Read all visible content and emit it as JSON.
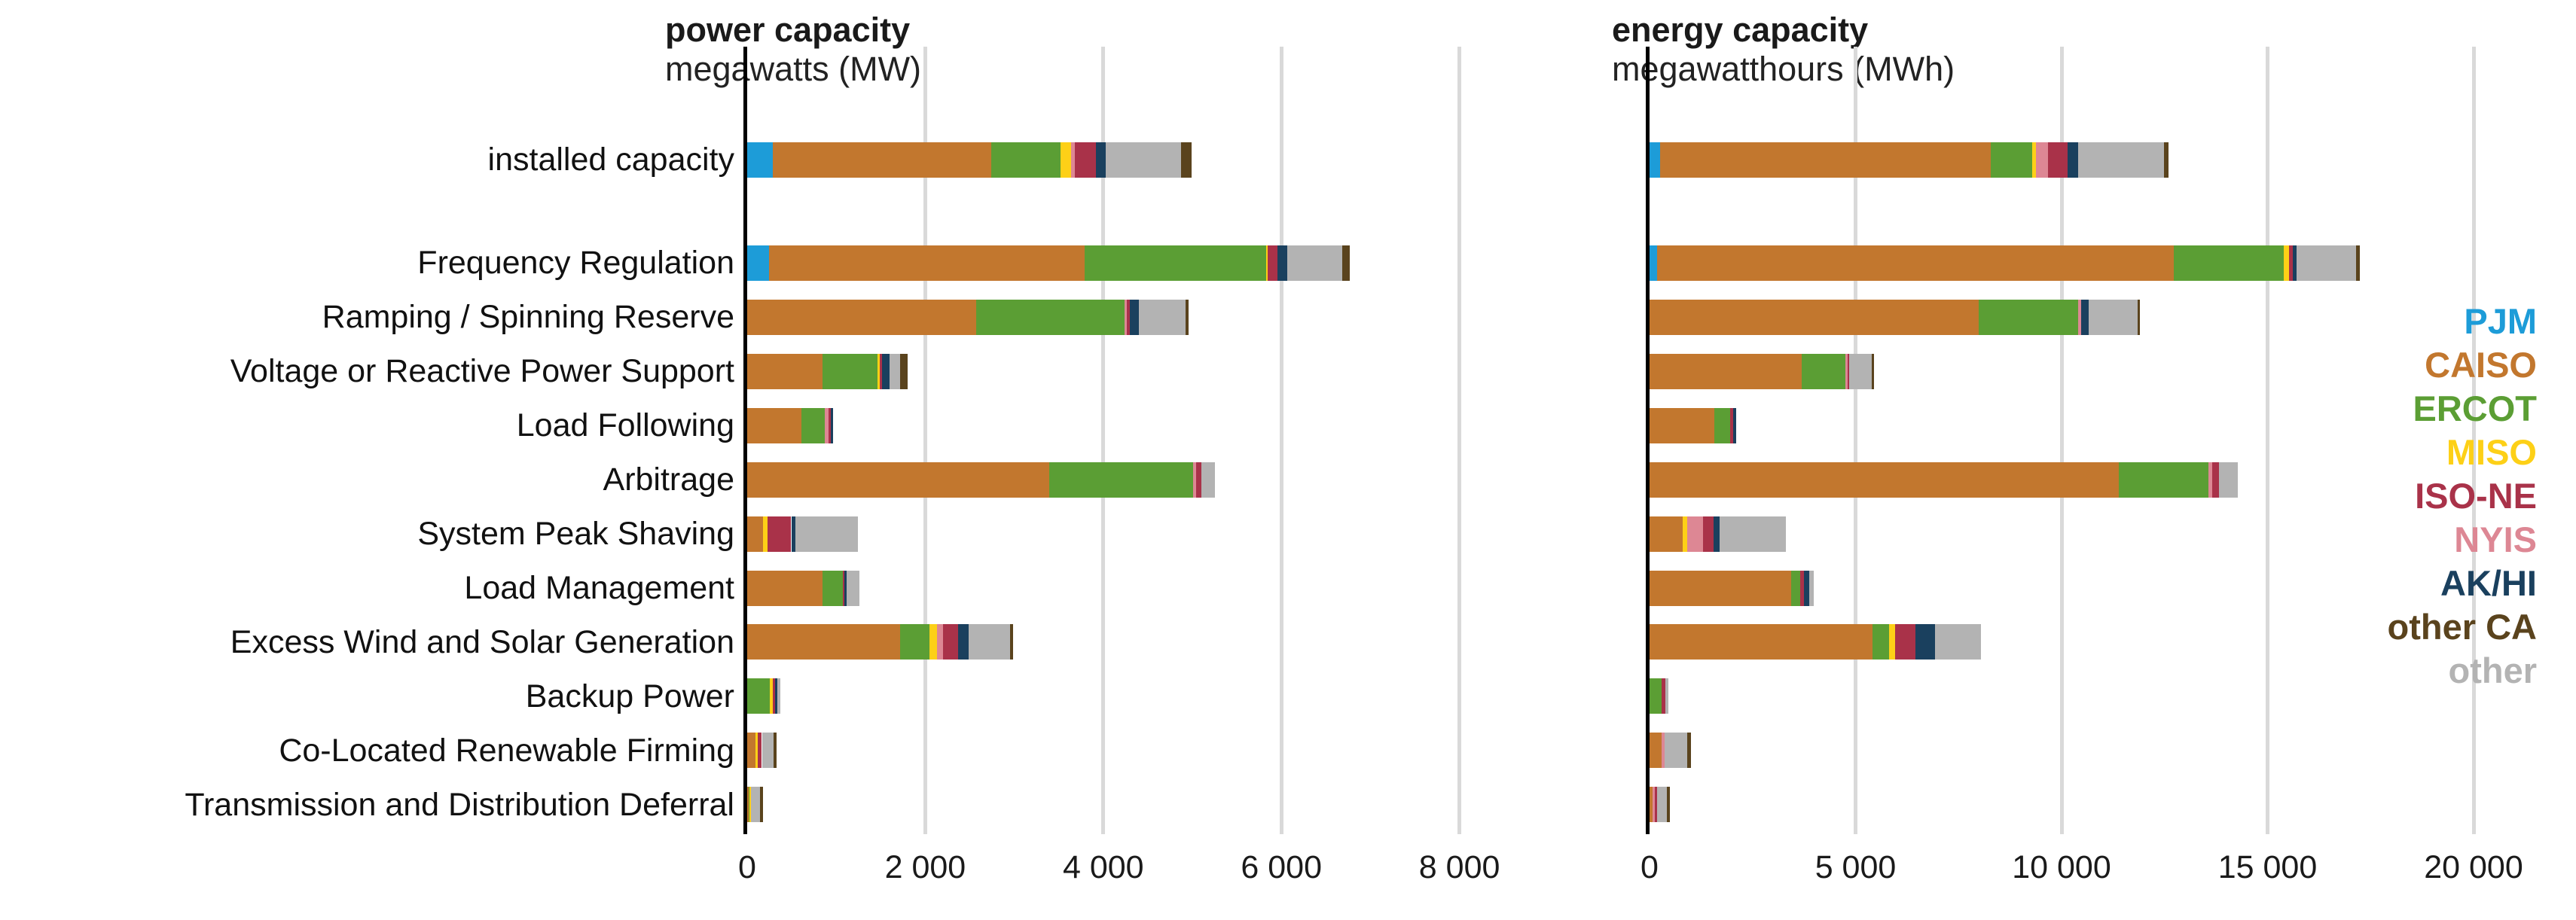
{
  "colors": {
    "PJM": "#1d9cd8",
    "CAISO": "#c2772e",
    "ERCOT": "#5b9e34",
    "MISO": "#fdd017",
    "NYIS": "#dd8794",
    "ISO-NE": "#a93249",
    "AK/HI": "#1a405e",
    "other CA": "#5a431d",
    "other": "#b3b3b3",
    "gridline": "#d9d9d9",
    "axis": "#000000"
  },
  "legend": {
    "items": [
      {
        "label": "PJM",
        "color": "#1d9cd8"
      },
      {
        "label": "CAISO",
        "color": "#c2772e"
      },
      {
        "label": "ERCOT",
        "color": "#5b9e34"
      },
      {
        "label": "MISO",
        "color": "#fdd017"
      },
      {
        "label": "ISO-NE",
        "color": "#a93249"
      },
      {
        "label": "NYIS",
        "color": "#dd8794"
      },
      {
        "label": "AK/HI",
        "color": "#1a405e"
      },
      {
        "label": "other CA",
        "color": "#5a431d"
      },
      {
        "label": "other",
        "color": "#b3b3b3"
      }
    ]
  },
  "chart_data": [
    {
      "type": "bar",
      "orientation": "horizontal",
      "stacked": true,
      "title": "power capacity",
      "subtitle": "megawatts (MW)",
      "unit": "MW",
      "xlabel": "",
      "ylabel": "",
      "xlim": [
        0,
        9000
      ],
      "grid": "vertical",
      "x_ticks": [
        {
          "value": 0,
          "label": "0"
        },
        {
          "value": 2000,
          "label": "2 000"
        },
        {
          "value": 4000,
          "label": "4 000"
        },
        {
          "value": 6000,
          "label": "6 000"
        },
        {
          "value": 8000,
          "label": "8 000"
        }
      ],
      "categories": [
        "installed capacity",
        "Frequency Regulation",
        "Ramping / Spinning Reserve",
        "Voltage or Reactive Power Support",
        "Load Following",
        "Arbitrage",
        "System Peak Shaving",
        "Load Management",
        "Excess Wind and Solar Generation",
        "Backup Power",
        "Co-Located Renewable Firming",
        "Transmission and Distribution Deferral"
      ],
      "series": [
        {
          "name": "PJM",
          "values": [
            290,
            245,
            0,
            0,
            0,
            0,
            0,
            0,
            0,
            0,
            0,
            0
          ]
        },
        {
          "name": "CAISO",
          "values": [
            2450,
            3545,
            2570,
            850,
            610,
            3390,
            180,
            845,
            1720,
            0,
            95,
            15
          ]
        },
        {
          "name": "ERCOT",
          "values": [
            780,
            2035,
            1665,
            615,
            260,
            1615,
            0,
            230,
            325,
            250,
            0,
            10
          ]
        },
        {
          "name": "MISO",
          "values": [
            120,
            25,
            0,
            25,
            0,
            0,
            50,
            0,
            85,
            35,
            20,
            20
          ]
        },
        {
          "name": "NYIS",
          "values": [
            40,
            0,
            30,
            0,
            45,
            40,
            0,
            0,
            70,
            0,
            0,
            0
          ]
        },
        {
          "name": "ISO-NE",
          "values": [
            235,
            110,
            35,
            25,
            25,
            60,
            265,
            20,
            170,
            30,
            50,
            0
          ]
        },
        {
          "name": "AK/HI",
          "values": [
            110,
            110,
            100,
            80,
            25,
            0,
            50,
            25,
            115,
            25,
            0,
            0
          ]
        },
        {
          "name": "other",
          "values": [
            845,
            610,
            525,
            120,
            0,
            150,
            700,
            140,
            465,
            30,
            135,
            100
          ]
        },
        {
          "name": "other CA",
          "values": [
            120,
            90,
            35,
            85,
            0,
            0,
            0,
            0,
            35,
            0,
            30,
            35
          ]
        }
      ]
    },
    {
      "type": "bar",
      "orientation": "horizontal",
      "stacked": true,
      "title": "energy capacity",
      "subtitle": "megawatthours (MWh)",
      "unit": "MWh",
      "xlabel": "",
      "ylabel": "",
      "xlim": [
        0,
        20400
      ],
      "grid": "vertical",
      "x_ticks": [
        {
          "value": 0,
          "label": "0"
        },
        {
          "value": 5000,
          "label": "5 000"
        },
        {
          "value": 10000,
          "label": "10 000"
        },
        {
          "value": 15000,
          "label": "15 000"
        },
        {
          "value": 20000,
          "label": "20 000"
        }
      ],
      "categories": [
        "installed capacity",
        "Frequency Regulation",
        "Ramping / Spinning Reserve",
        "Voltage or Reactive Power Support",
        "Load Following",
        "Arbitrage",
        "System Peak Shaving",
        "Load Management",
        "Excess Wind and Solar Generation",
        "Backup Power",
        "Co-Located Renewable Firming",
        "Transmission and Distribution Deferral"
      ],
      "series": [
        {
          "name": "PJM",
          "values": [
            250,
            190,
            0,
            0,
            0,
            0,
            0,
            0,
            0,
            0,
            0,
            0
          ]
        },
        {
          "name": "CAISO",
          "values": [
            8030,
            12540,
            7990,
            3690,
            1570,
            11385,
            805,
            3435,
            5420,
            0,
            290,
            80
          ]
        },
        {
          "name": "ERCOT",
          "values": [
            1010,
            2665,
            2410,
            1065,
            385,
            2180,
            0,
            220,
            385,
            290,
            0,
            0
          ]
        },
        {
          "name": "MISO",
          "values": [
            80,
            130,
            0,
            0,
            0,
            0,
            100,
            0,
            155,
            0,
            0,
            0
          ]
        },
        {
          "name": "NYIS",
          "values": [
            300,
            0,
            75,
            45,
            0,
            90,
            385,
            0,
            0,
            0,
            80,
            50
          ]
        },
        {
          "name": "ISO-NE",
          "values": [
            470,
            90,
            0,
            45,
            80,
            165,
            255,
            100,
            490,
            100,
            0,
            55
          ]
        },
        {
          "name": "AK/HI",
          "values": [
            255,
            90,
            185,
            0,
            75,
            0,
            155,
            120,
            485,
            0,
            0,
            0
          ]
        },
        {
          "name": "other",
          "values": [
            2100,
            1450,
            1180,
            550,
            0,
            450,
            1600,
            110,
            1115,
            60,
            550,
            230
          ]
        },
        {
          "name": "other CA",
          "values": [
            95,
            90,
            60,
            50,
            0,
            0,
            0,
            0,
            0,
            0,
            80,
            80
          ]
        }
      ]
    }
  ]
}
